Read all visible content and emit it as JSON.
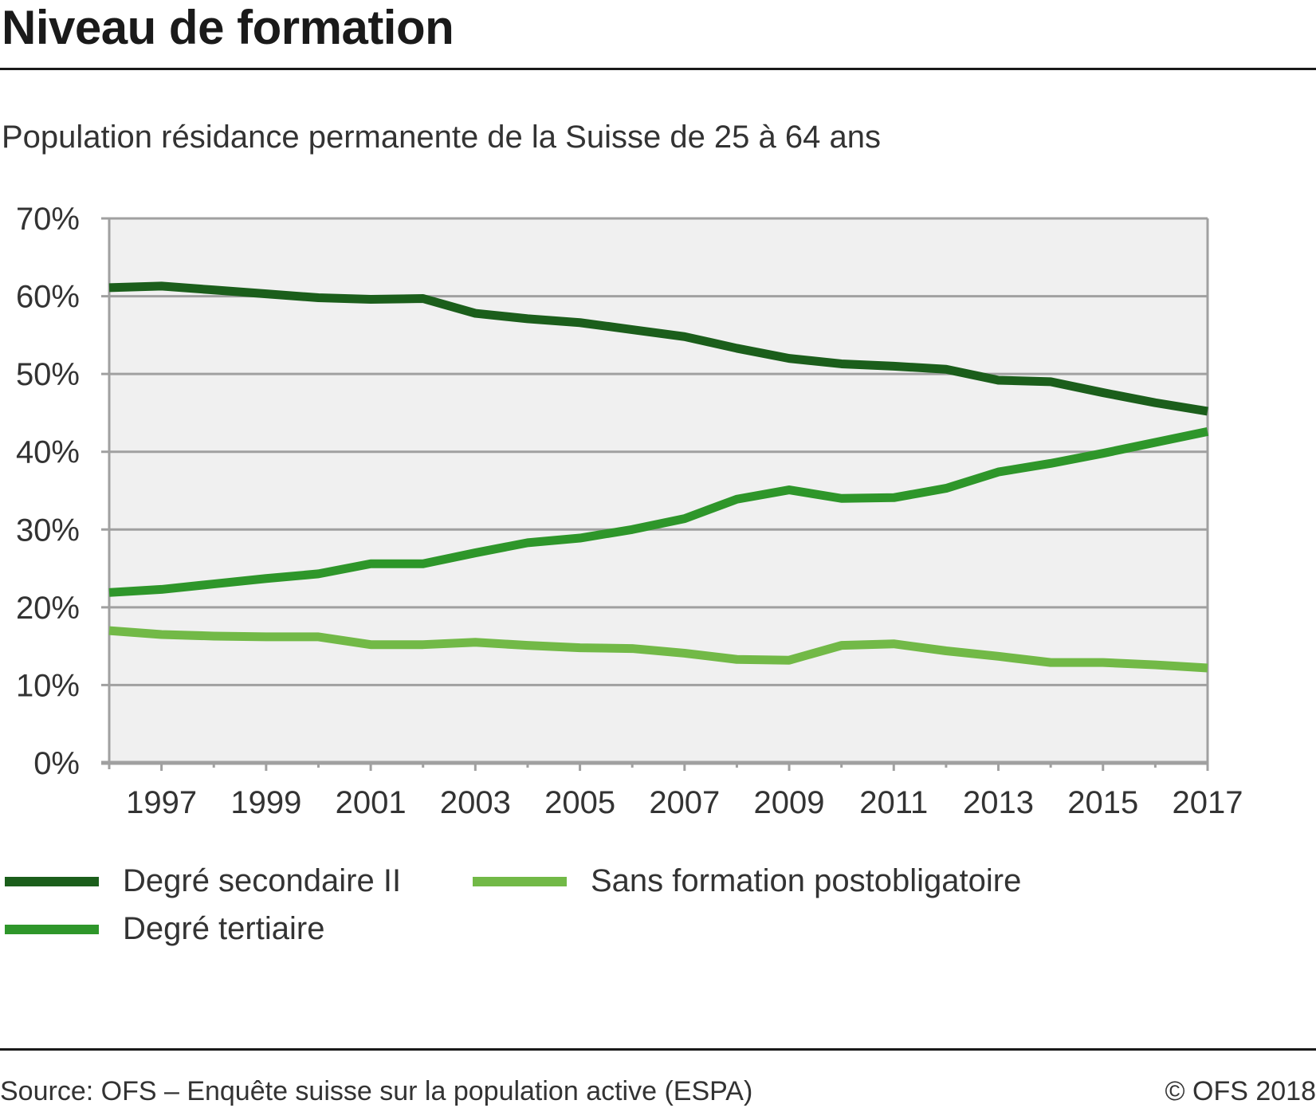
{
  "header": {
    "title": "Niveau de formation",
    "subtitle": "Population résidance permanente de la Suisse de 25 à 64 ans"
  },
  "footer": {
    "source": "Source: OFS – Enquête suisse sur la population active (ESPA)",
    "copyright": "© OFS 2018"
  },
  "chart_data": {
    "type": "line",
    "title": "Niveau de formation",
    "subtitle": "Population résidance permanente de la Suisse de 25 à 64 ans",
    "xlabel": "",
    "ylabel": "",
    "x": [
      1996,
      1997,
      1998,
      1999,
      2000,
      2001,
      2002,
      2003,
      2004,
      2005,
      2006,
      2007,
      2008,
      2009,
      2010,
      2011,
      2012,
      2013,
      2014,
      2015,
      2016,
      2017
    ],
    "xlim": [
      1996,
      2017
    ],
    "xticks_major": [
      1997,
      1999,
      2001,
      2003,
      2005,
      2007,
      2009,
      2011,
      2013,
      2015,
      2017
    ],
    "xtick_labels": [
      "1997",
      "1999",
      "2001",
      "2003",
      "2005",
      "2007",
      "2009",
      "2011",
      "2013",
      "2015",
      "2017"
    ],
    "ylim": [
      0,
      70
    ],
    "yticks": [
      0,
      10,
      20,
      30,
      40,
      50,
      60,
      70
    ],
    "ytick_labels": [
      "0%",
      "10%",
      "20%",
      "30%",
      "40%",
      "50%",
      "60%",
      "70%"
    ],
    "grid": true,
    "legend_position": "bottom",
    "series": [
      {
        "name": "Degré secondaire II",
        "color": "#1b5e1b",
        "values": [
          61.1,
          61.3,
          60.8,
          60.3,
          59.8,
          59.6,
          59.7,
          57.8,
          57.1,
          56.6,
          55.7,
          54.8,
          53.3,
          52.0,
          51.3,
          51.0,
          50.6,
          49.2,
          49.0,
          47.6,
          46.3,
          45.2
        ]
      },
      {
        "name": "Degré tertiaire",
        "color": "#2e962a",
        "values": [
          21.9,
          22.3,
          23.0,
          23.7,
          24.3,
          25.6,
          25.6,
          27.0,
          28.3,
          28.9,
          30.0,
          31.4,
          33.9,
          35.1,
          34.0,
          34.1,
          35.3,
          37.4,
          38.5,
          39.8,
          41.2,
          42.6
        ]
      },
      {
        "name": "Sans formation postobligatoire",
        "color": "#72b947",
        "values": [
          17.0,
          16.5,
          16.3,
          16.2,
          16.2,
          15.2,
          15.2,
          15.5,
          15.1,
          14.8,
          14.7,
          14.1,
          13.3,
          13.2,
          15.1,
          15.3,
          14.4,
          13.7,
          12.9,
          12.9,
          12.6,
          12.2
        ]
      }
    ],
    "legend": [
      {
        "label": "Degré secondaire II",
        "color": "#1b5e1b"
      },
      {
        "label": "Sans formation postobligatoire",
        "color": "#72b947"
      },
      {
        "label": "Degré tertiaire",
        "color": "#2e962a"
      }
    ],
    "plot_background": "#f0f0f0",
    "gridline_color": "#a0a0a0"
  }
}
